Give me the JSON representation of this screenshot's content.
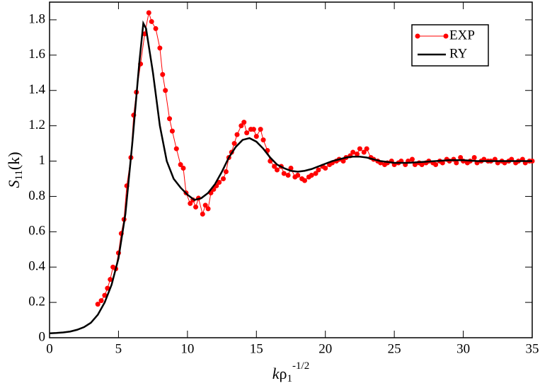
{
  "chart_data": {
    "type": "line",
    "xlabel": {
      "main": "k",
      "symbol": "ρ",
      "sub": "1",
      "sup": "-1/2"
    },
    "ylabel": {
      "main": "S",
      "sub": "11",
      "paren": "(k)"
    },
    "xlim": [
      0,
      35
    ],
    "xticks": [
      0,
      5,
      10,
      15,
      20,
      25,
      30,
      35
    ],
    "ylim": [
      0,
      1.9
    ],
    "yticks": [
      0,
      0.2,
      0.4,
      0.6,
      0.8,
      1,
      1.2,
      1.4,
      1.6,
      1.8
    ],
    "legend": "upper right",
    "series": [
      {
        "name": "EXP",
        "color": "#ff0000",
        "marker": "circle",
        "x": [
          3.5,
          3.75,
          4.0,
          4.2,
          4.4,
          4.6,
          4.8,
          5.0,
          5.2,
          5.4,
          5.6,
          5.9,
          6.1,
          6.3,
          6.6,
          6.9,
          7.2,
          7.4,
          7.7,
          8.0,
          8.2,
          8.4,
          8.7,
          8.9,
          9.2,
          9.5,
          9.7,
          9.9,
          10.2,
          10.4,
          10.6,
          10.8,
          11.1,
          11.3,
          11.5,
          11.7,
          11.9,
          12.1,
          12.3,
          12.6,
          12.8,
          13.0,
          13.2,
          13.4,
          13.6,
          13.9,
          14.1,
          14.3,
          14.6,
          14.8,
          15.0,
          15.3,
          15.5,
          15.8,
          16.0,
          16.3,
          16.5,
          16.8,
          17.0,
          17.3,
          17.5,
          17.8,
          18.0,
          18.3,
          18.5,
          18.8,
          19.0,
          19.3,
          19.5,
          19.8,
          20.0,
          20.3,
          20.5,
          20.8,
          21.0,
          21.3,
          21.5,
          21.8,
          22.0,
          22.3,
          22.5,
          22.8,
          23.0,
          23.3,
          23.5,
          23.8,
          24.0,
          24.3,
          24.5,
          24.8,
          25.0,
          25.3,
          25.5,
          25.8,
          26.0,
          26.3,
          26.5,
          26.8,
          27.0,
          27.3,
          27.5,
          27.8,
          28.0,
          28.3,
          28.5,
          28.8,
          29.0,
          29.3,
          29.5,
          29.8,
          30.0,
          30.3,
          30.5,
          30.8,
          31.0,
          31.3,
          31.5,
          31.8,
          32.0,
          32.3,
          32.5,
          32.8,
          33.0,
          33.3,
          33.5,
          33.8,
          34.0,
          34.3,
          34.5,
          34.8,
          35.0
        ],
        "values": [
          0.19,
          0.21,
          0.24,
          0.28,
          0.33,
          0.4,
          0.39,
          0.48,
          0.59,
          0.67,
          0.86,
          1.02,
          1.26,
          1.39,
          1.55,
          1.72,
          1.84,
          1.79,
          1.75,
          1.64,
          1.49,
          1.4,
          1.24,
          1.17,
          1.07,
          0.98,
          0.96,
          0.82,
          0.76,
          0.78,
          0.74,
          0.79,
          0.7,
          0.75,
          0.73,
          0.82,
          0.84,
          0.86,
          0.88,
          0.9,
          0.94,
          1.02,
          1.05,
          1.1,
          1.15,
          1.2,
          1.22,
          1.16,
          1.18,
          1.18,
          1.14,
          1.18,
          1.12,
          1.06,
          1.0,
          0.97,
          0.95,
          0.97,
          0.93,
          0.92,
          0.96,
          0.91,
          0.92,
          0.9,
          0.89,
          0.91,
          0.92,
          0.93,
          0.95,
          0.97,
          0.96,
          0.98,
          0.99,
          1.0,
          1.01,
          1.0,
          1.02,
          1.03,
          1.05,
          1.04,
          1.07,
          1.05,
          1.07,
          1.02,
          1.01,
          1.0,
          0.99,
          0.98,
          0.99,
          1.0,
          0.98,
          0.99,
          1.0,
          0.98,
          1.0,
          1.01,
          0.98,
          0.99,
          0.98,
          0.99,
          1.0,
          0.99,
          0.98,
          1.0,
          0.99,
          1.01,
          1.0,
          1.01,
          0.99,
          1.02,
          1.0,
          0.99,
          1.0,
          1.02,
          0.99,
          1.0,
          1.01,
          1.0,
          1.0,
          1.01,
          0.99,
          1.0,
          0.99,
          1.0,
          1.01,
          0.99,
          1.0,
          1.01,
          0.99,
          1.0,
          1.0
        ]
      },
      {
        "name": "RY",
        "color": "#000000",
        "x": [
          0,
          0.5,
          1,
          1.5,
          2,
          2.5,
          3,
          3.5,
          4,
          4.5,
          5,
          5.5,
          6,
          6.5,
          6.8,
          7,
          7.5,
          8,
          8.5,
          9,
          9.5,
          10,
          10.5,
          11,
          11.5,
          12,
          12.5,
          13,
          13.5,
          14,
          14.5,
          15,
          15.5,
          16,
          16.5,
          17,
          17.5,
          18,
          18.5,
          19,
          19.5,
          20,
          20.5,
          21,
          21.5,
          22,
          22.5,
          23,
          23.5,
          24,
          25,
          26,
          27,
          28,
          29,
          30,
          31,
          32,
          33,
          34,
          35
        ],
        "values": [
          0.025,
          0.027,
          0.03,
          0.035,
          0.045,
          0.06,
          0.085,
          0.13,
          0.2,
          0.3,
          0.45,
          0.7,
          1.1,
          1.55,
          1.78,
          1.75,
          1.5,
          1.2,
          1.0,
          0.9,
          0.85,
          0.81,
          0.78,
          0.79,
          0.82,
          0.87,
          0.94,
          1.02,
          1.08,
          1.12,
          1.13,
          1.11,
          1.07,
          1.02,
          0.98,
          0.96,
          0.945,
          0.94,
          0.945,
          0.955,
          0.97,
          0.985,
          1.0,
          1.01,
          1.02,
          1.025,
          1.025,
          1.02,
          1.01,
          1.0,
          0.99,
          0.99,
          0.995,
          1.0,
          1.005,
          1.005,
          1.0,
          1.0,
          1.0,
          1.0,
          1.0
        ]
      }
    ]
  }
}
